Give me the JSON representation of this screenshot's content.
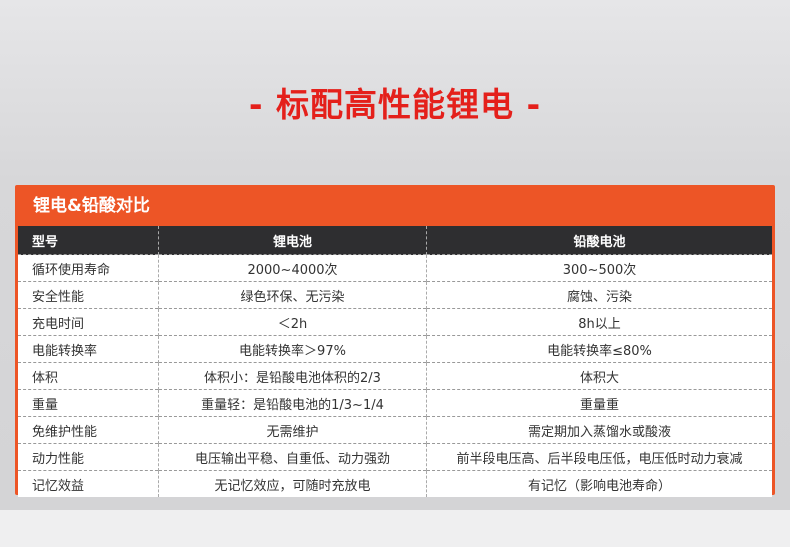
{
  "title": "- 标配高性能锂电 -",
  "table": {
    "caption": "锂电&铅酸对比",
    "headers": [
      "型号",
      "锂电池",
      "铅酸电池"
    ],
    "rows": [
      [
        "循环使用寿命",
        "2000~4000次",
        "300~500次"
      ],
      [
        "安全性能",
        "绿色环保、无污染",
        "腐蚀、污染"
      ],
      [
        "充电时间",
        "＜2h",
        "8h以上"
      ],
      [
        "电能转换率",
        "电能转换率＞97%",
        "电能转换率≤80%"
      ],
      [
        "体积",
        "体积小：是铅酸电池体积的2/3",
        "体积大"
      ],
      [
        "重量",
        "重量轻：是铅酸电池的1/3~1/4",
        "重量重"
      ],
      [
        "免维护性能",
        "无需维护",
        "需定期加入蒸馏水或酸液"
      ],
      [
        "动力性能",
        "电压输出平稳、自重低、动力强劲",
        "前半段电压高、后半段电压低，电压低时动力衰减"
      ],
      [
        "记忆效益",
        "无记忆效应，可随时充放电",
        "有记忆（影响电池寿命）"
      ]
    ]
  },
  "colors": {
    "accent": "#ed5526",
    "title": "#e4201b",
    "header": "#2e2e30"
  }
}
